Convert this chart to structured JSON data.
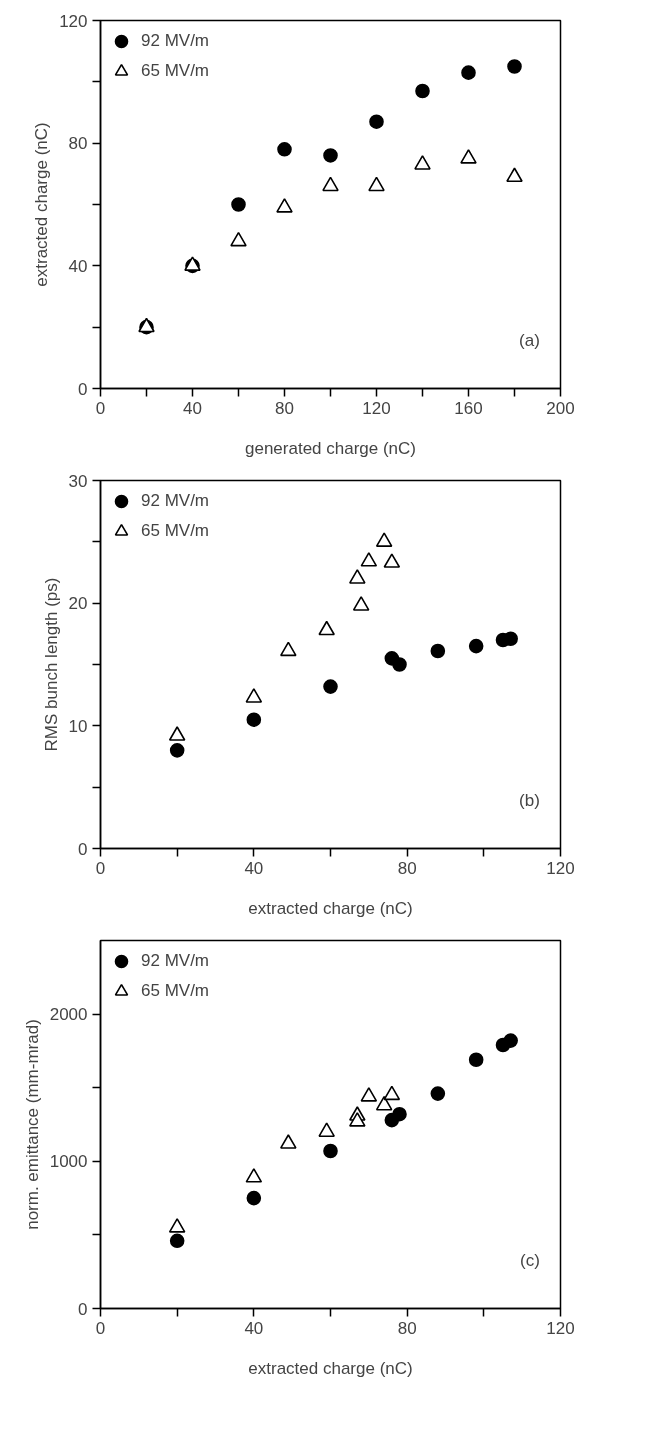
{
  "chart_data": [
    {
      "type": "scatter",
      "xlabel": "generated charge (nC)",
      "ylabel": "extracted charge (nC)",
      "annotations": [
        "(a)"
      ],
      "legend": "top left",
      "grid": false,
      "xlim": [
        0,
        200
      ],
      "ylim": [
        0,
        120
      ],
      "xticks": [
        0,
        {
          "value": 20,
          "label": null
        },
        40,
        {
          "value": 60,
          "label": null
        },
        80,
        {
          "value": 100,
          "label": null
        },
        120,
        {
          "value": 140,
          "label": null
        },
        160,
        {
          "value": 180,
          "label": null
        },
        200
      ],
      "yticks": [
        0,
        {
          "value": 20,
          "label": null
        },
        40,
        {
          "value": 60,
          "label": null
        },
        80,
        {
          "value": 100,
          "label": null
        },
        120
      ],
      "series": [
        {
          "name": "92 MV/m",
          "color": "#000000",
          "marker": "circle",
          "x": [
            20,
            40,
            60,
            80,
            100,
            120,
            140,
            160,
            180
          ],
          "values": [
            20,
            40,
            60,
            78,
            76,
            87,
            97,
            103,
            105
          ]
        },
        {
          "name": "65 MV/m",
          "color": "#000000",
          "marker": "triangle",
          "x": [
            20,
            40,
            60,
            80,
            100,
            120,
            140,
            160,
            180
          ],
          "values": [
            20,
            40,
            48,
            59,
            66,
            66,
            73,
            75,
            69
          ]
        }
      ]
    },
    {
      "type": "scatter",
      "xlabel": "extracted charge (nC)",
      "ylabel": "RMS bunch length (ps)",
      "annotations": [
        "(b)"
      ],
      "legend": "top left",
      "grid": false,
      "xlim": [
        0,
        120
      ],
      "ylim": [
        0,
        30
      ],
      "xticks": [
        0,
        {
          "value": 20,
          "label": null
        },
        40,
        {
          "value": 60,
          "label": null
        },
        80,
        {
          "value": 100,
          "label": null
        },
        120
      ],
      "yticks": [
        0,
        {
          "value": 5,
          "label": null
        },
        10,
        {
          "value": 15,
          "label": null
        },
        20,
        {
          "value": 25,
          "label": null
        },
        30
      ],
      "series": [
        {
          "name": "92 MV/m",
          "color": "#000000",
          "marker": "circle",
          "x": [
            20,
            40,
            60,
            76,
            78,
            88,
            98,
            105,
            107
          ],
          "values": [
            8,
            10.5,
            13.2,
            15.5,
            15,
            16.1,
            16.5,
            17,
            17.1
          ]
        },
        {
          "name": "65 MV/m",
          "color": "#000000",
          "marker": "triangle",
          "x": [
            20,
            40,
            49,
            59,
            67,
            68,
            70,
            74,
            76
          ],
          "values": [
            9.2,
            12.3,
            16.1,
            17.8,
            22,
            19.8,
            23.4,
            25,
            23.3
          ]
        }
      ]
    },
    {
      "type": "scatter",
      "xlabel": "extracted charge (nC)",
      "ylabel": "norm. emittance (mm-mrad)",
      "annotations": [
        "(c)"
      ],
      "legend": "top left",
      "grid": false,
      "xlim": [
        0,
        120
      ],
      "ylim": [
        0,
        2500
      ],
      "xticks": [
        0,
        {
          "value": 20,
          "label": null
        },
        40,
        {
          "value": 60,
          "label": null
        },
        80,
        {
          "value": 100,
          "label": null
        },
        120
      ],
      "yticks": [
        0,
        {
          "value": 500,
          "label": null
        },
        1000,
        {
          "value": 1500,
          "label": null
        },
        2000
      ],
      "series": [
        {
          "name": "92 MV/m",
          "color": "#000000",
          "marker": "circle",
          "x": [
            20,
            40,
            60,
            76,
            78,
            88,
            98,
            105,
            107
          ],
          "values": [
            460,
            750,
            1070,
            1280,
            1320,
            1460,
            1690,
            1790,
            1820
          ]
        },
        {
          "name": "65 MV/m",
          "color": "#000000",
          "marker": "triangle",
          "x": [
            20,
            40,
            49,
            59,
            67,
            67,
            70,
            74,
            76
          ],
          "values": [
            550,
            890,
            1120,
            1200,
            1310,
            1270,
            1440,
            1380,
            1450
          ]
        }
      ]
    }
  ]
}
